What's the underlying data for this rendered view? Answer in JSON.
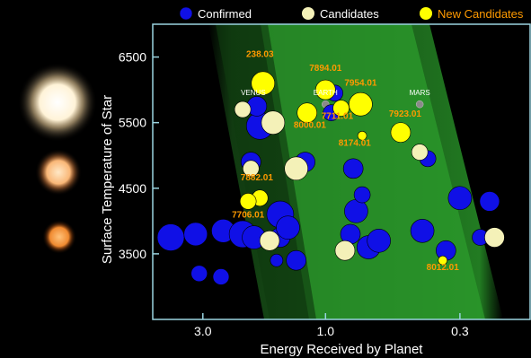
{
  "colors": {
    "background": "#000000",
    "confirmed": "#1010e6",
    "candidate": "#f4f1b8",
    "new_candidate": "#ffff00",
    "new_label": "#ff9a00",
    "zone": "#2a9a2a",
    "axis": "#9ad4e0"
  },
  "legend": {
    "confirmed": "Confirmed",
    "candidates": "Candidates",
    "new_candidates": "New Candidates"
  },
  "chart_data": {
    "type": "scatter",
    "xlabel": "Energy Received by Planet",
    "ylabel": "Surface Temperature of Star",
    "x_scale": "log",
    "x_reversed": true,
    "xlim": [
      4.7,
      0.16
    ],
    "ylim": [
      2500,
      7000
    ],
    "x_ticks": [
      {
        "value": 3.0,
        "label": "3.0"
      },
      {
        "value": 1.0,
        "label": "1.0"
      },
      {
        "value": 0.3,
        "label": "0.3"
      }
    ],
    "y_ticks": [
      {
        "value": 3500,
        "label": "3500"
      },
      {
        "value": 4500,
        "label": "4500"
      },
      {
        "value": 5500,
        "label": "5500"
      },
      {
        "value": 6500,
        "label": "6500"
      }
    ],
    "solar_planets": [
      {
        "label": "VENUS",
        "x": 1.91,
        "y": 5780
      },
      {
        "label": "EARTH",
        "x": 1.0,
        "y": 5780
      },
      {
        "label": "MARS",
        "x": 0.43,
        "y": 5780
      }
    ],
    "confirmed": [
      {
        "x": 4.0,
        "y": 3750,
        "size": 3
      },
      {
        "x": 3.2,
        "y": 3800,
        "size": 2.5
      },
      {
        "x": 2.5,
        "y": 3850,
        "size": 2.5
      },
      {
        "x": 2.1,
        "y": 3800,
        "size": 3
      },
      {
        "x": 1.9,
        "y": 3750,
        "size": 2.5
      },
      {
        "x": 1.8,
        "y": 5450,
        "size": 3
      },
      {
        "x": 1.85,
        "y": 5750,
        "size": 2
      },
      {
        "x": 1.95,
        "y": 4900,
        "size": 2
      },
      {
        "x": 1.5,
        "y": 4100,
        "size": 3
      },
      {
        "x": 1.5,
        "y": 3750,
        "size": 2
      },
      {
        "x": 1.4,
        "y": 3900,
        "size": 2.5
      },
      {
        "x": 1.3,
        "y": 3400,
        "size": 2
      },
      {
        "x": 1.2,
        "y": 4900,
        "size": 2
      },
      {
        "x": 0.95,
        "y": 5650,
        "size": 1.5
      },
      {
        "x": 0.92,
        "y": 5950,
        "size": 1.5
      },
      {
        "x": 0.8,
        "y": 3800,
        "size": 2
      },
      {
        "x": 0.78,
        "y": 4800,
        "size": 2
      },
      {
        "x": 0.76,
        "y": 4150,
        "size": 2.5
      },
      {
        "x": 0.72,
        "y": 4400,
        "size": 1.5
      },
      {
        "x": 0.68,
        "y": 3600,
        "size": 2.5
      },
      {
        "x": 0.62,
        "y": 3700,
        "size": 2.5
      },
      {
        "x": 0.42,
        "y": 3850,
        "size": 2.5
      },
      {
        "x": 0.4,
        "y": 4950,
        "size": 1.5
      },
      {
        "x": 0.34,
        "y": 3550,
        "size": 2
      },
      {
        "x": 0.3,
        "y": 4350,
        "size": 2.5
      },
      {
        "x": 0.23,
        "y": 4300,
        "size": 2
      },
      {
        "x": 0.25,
        "y": 3750,
        "size": 1.5
      },
      {
        "x": 3.1,
        "y": 3200,
        "size": 1.5
      },
      {
        "x": 2.55,
        "y": 3150,
        "size": 1.5
      },
      {
        "x": 1.55,
        "y": 3400,
        "size": 1
      }
    ],
    "candidates": [
      {
        "x": 2.1,
        "y": 5700,
        "size": 1.5
      },
      {
        "x": 1.95,
        "y": 4800,
        "size": 1.5
      },
      {
        "x": 1.65,
        "y": 3700,
        "size": 2
      },
      {
        "x": 1.6,
        "y": 5500,
        "size": 2.5
      },
      {
        "x": 1.3,
        "y": 4800,
        "size": 2.5
      },
      {
        "x": 0.84,
        "y": 3550,
        "size": 2
      },
      {
        "x": 0.43,
        "y": 5050,
        "size": 1.5
      },
      {
        "x": 0.22,
        "y": 3750,
        "size": 2
      }
    ],
    "new_candidates": [
      {
        "label": "238.03",
        "x": 1.75,
        "y": 6100,
        "size": 2.5,
        "lx": 1.8,
        "ly": 6500
      },
      {
        "label": "7894.01",
        "x": 1.0,
        "y": 6000,
        "size": 2,
        "lx": 1.0,
        "ly": 6290
      },
      {
        "label": "7954.01",
        "x": 0.73,
        "y": 5780,
        "size": 2.5,
        "lx": 0.73,
        "ly": 6060
      },
      {
        "label": "7711.01",
        "x": 0.87,
        "y": 5720,
        "size": 1.5,
        "lx": 0.9,
        "ly": 5560
      },
      {
        "label": "8000.01",
        "x": 1.18,
        "y": 5650,
        "size": 2,
        "lx": 1.15,
        "ly": 5420
      },
      {
        "label": "7923.01",
        "x": 0.51,
        "y": 5350,
        "size": 2,
        "lx": 0.49,
        "ly": 5590
      },
      {
        "label": "8174.01",
        "x": 0.72,
        "y": 5300,
        "size": 0.5,
        "lx": 0.77,
        "ly": 5150
      },
      {
        "label": "7882.01",
        "x": 1.8,
        "y": 4350,
        "size": 1.5,
        "lx": 1.85,
        "ly": 4620
      },
      {
        "label": "7706.01",
        "x": 2.0,
        "y": 4300,
        "size": 1.5,
        "lx": 2.0,
        "ly": 4050
      },
      {
        "label": "8012.01",
        "x": 0.35,
        "y": 3400,
        "size": 0.5,
        "lx": 0.35,
        "ly": 3250
      }
    ]
  }
}
